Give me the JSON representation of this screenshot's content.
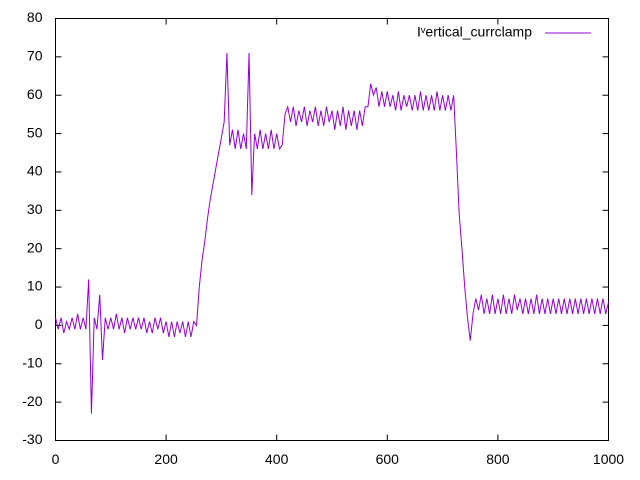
{
  "chart_data": {
    "type": "line",
    "x": [
      0,
      5,
      10,
      15,
      20,
      25,
      30,
      35,
      40,
      45,
      50,
      55,
      60,
      65,
      70,
      75,
      80,
      85,
      90,
      95,
      100,
      105,
      110,
      115,
      120,
      125,
      130,
      135,
      140,
      145,
      150,
      155,
      160,
      165,
      170,
      175,
      180,
      185,
      190,
      195,
      200,
      205,
      210,
      215,
      220,
      225,
      230,
      235,
      240,
      245,
      250,
      255,
      260,
      265,
      270,
      275,
      280,
      285,
      290,
      295,
      300,
      305,
      310,
      315,
      320,
      325,
      330,
      335,
      340,
      345,
      350,
      355,
      360,
      365,
      370,
      375,
      380,
      385,
      390,
      395,
      400,
      405,
      410,
      415,
      420,
      425,
      430,
      435,
      440,
      445,
      450,
      455,
      460,
      465,
      470,
      475,
      480,
      485,
      490,
      495,
      500,
      505,
      510,
      515,
      520,
      525,
      530,
      535,
      540,
      545,
      550,
      555,
      560,
      565,
      570,
      575,
      580,
      585,
      590,
      595,
      600,
      605,
      610,
      615,
      620,
      625,
      630,
      635,
      640,
      645,
      650,
      655,
      660,
      665,
      670,
      675,
      680,
      685,
      690,
      695,
      700,
      705,
      710,
      715,
      720,
      725,
      730,
      735,
      740,
      745,
      750,
      755,
      760,
      765,
      770,
      775,
      780,
      785,
      790,
      795,
      800,
      805,
      810,
      815,
      820,
      825,
      830,
      835,
      840,
      845,
      850,
      855,
      860,
      865,
      870,
      875,
      880,
      885,
      890,
      895,
      900,
      905,
      910,
      915,
      920,
      925,
      930,
      935,
      940,
      945,
      950,
      955,
      960,
      965,
      970,
      975,
      980,
      985,
      990,
      995,
      1000
    ],
    "series": [
      {
        "name": "Iᵛertical_currclamp",
        "color": "#9400d3",
        "values": [
          2,
          -1,
          2,
          -2,
          1,
          -1,
          2,
          -1,
          3,
          -1,
          2,
          -1,
          12,
          -23,
          2,
          -1,
          8,
          -9,
          2,
          -1,
          2,
          -1,
          3,
          -1,
          2,
          -2,
          2,
          -1,
          2,
          -1,
          2,
          -1,
          2,
          -2,
          1,
          -2,
          2,
          -1,
          2,
          -2,
          1,
          -3,
          1,
          -3,
          1,
          -2,
          1,
          -3,
          1,
          -3,
          1,
          0,
          10,
          17,
          22,
          28,
          33,
          37,
          41,
          45,
          49,
          53,
          71,
          47,
          51,
          46,
          51,
          46,
          50,
          46,
          71,
          34,
          50,
          46,
          51,
          46,
          50,
          46,
          51,
          46,
          50,
          46,
          47,
          55,
          57,
          53,
          57,
          52,
          56,
          53,
          57,
          52,
          56,
          53,
          57,
          52,
          56,
          52,
          57,
          53,
          56,
          51,
          56,
          52,
          57,
          51,
          56,
          52,
          56,
          51,
          56,
          52,
          57,
          57,
          63,
          60,
          62,
          57,
          61,
          57,
          61,
          57,
          60,
          56,
          61,
          56,
          60,
          57,
          60,
          56,
          60,
          56,
          61,
          56,
          60,
          56,
          60,
          56,
          61,
          56,
          60,
          56,
          60,
          56,
          60,
          45,
          29,
          20,
          10,
          2,
          -4,
          3,
          7,
          4,
          8,
          3,
          7,
          3,
          8,
          3,
          7,
          3,
          8,
          3,
          7,
          3,
          8,
          4,
          7,
          3,
          7,
          3,
          7,
          3,
          8,
          3,
          7,
          3,
          7,
          3,
          7,
          3,
          7,
          3,
          7,
          3,
          7,
          3,
          7,
          3,
          7,
          3,
          7,
          3,
          7,
          3,
          7,
          3,
          7,
          3,
          6
        ]
      }
    ],
    "xlim": [
      0,
      1000
    ],
    "xticks": [
      0,
      200,
      400,
      600,
      800,
      1000
    ],
    "ylim": [
      -30,
      80
    ],
    "yticks": [
      -30,
      -20,
      -10,
      0,
      10,
      20,
      30,
      40,
      50,
      60,
      70,
      80
    ],
    "grid": false,
    "legend": "top-right"
  }
}
